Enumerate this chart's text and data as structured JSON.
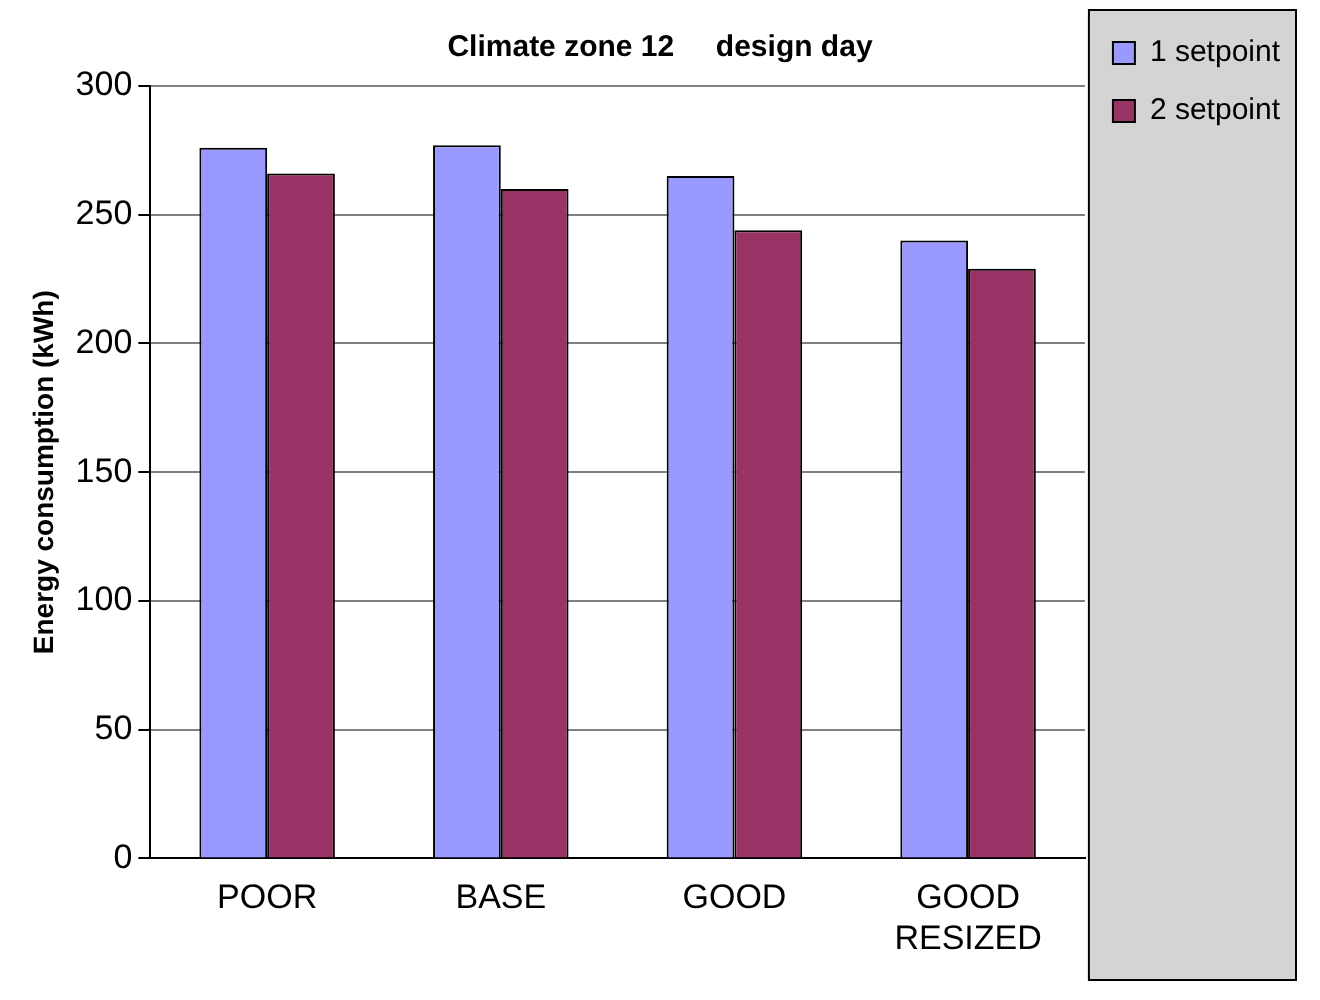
{
  "chart_data": {
    "type": "bar",
    "title": "Climate zone 12     design day",
    "ylabel": "Energy consumption (kWh)",
    "categories": [
      "POOR",
      "BASE",
      "GOOD",
      "GOOD RESIZED"
    ],
    "series": [
      {
        "name": "1 setpoint",
        "color": "#9999ff",
        "values": [
          276,
          277,
          265,
          240
        ]
      },
      {
        "name": "2 setpoint",
        "color": "#993366",
        "values": [
          266,
          260,
          244,
          229
        ]
      }
    ],
    "ylim": [
      0,
      300
    ],
    "yticks": [
      0,
      50,
      100,
      150,
      200,
      250,
      300
    ],
    "grid": "y",
    "legend": "top right"
  }
}
